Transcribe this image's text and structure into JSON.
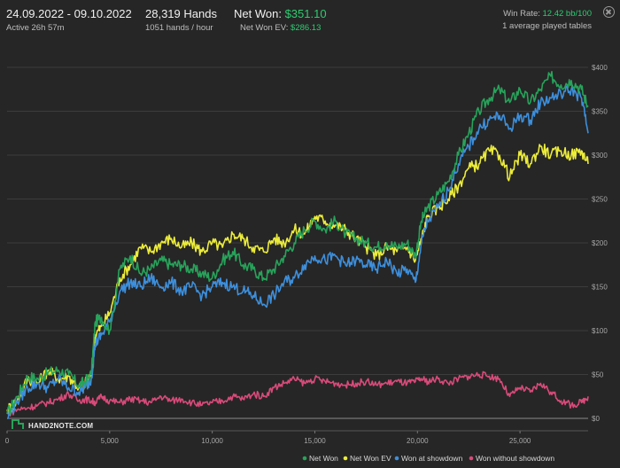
{
  "header": {
    "date_range": "24.09.2022 - 09.10.2022",
    "active_time": "Active 26h 57m",
    "hands": "28,319 Hands",
    "hands_per_hour": "1051 hands / hour",
    "net_won_label": "Net Won:",
    "net_won_value": "$351.10",
    "net_won_ev_label": "Net Won  EV:",
    "net_won_ev_value": "$286.13",
    "win_rate_label": "Win Rate:",
    "win_rate_value": "12.42 bb/100",
    "tables_info": "1 average played tables"
  },
  "logo": {
    "text": "HAND2NOTE.COM",
    "icon": "hand2note-logo-icon"
  },
  "toolbar": {
    "close_icon": "close-icon"
  },
  "colors": {
    "background": "#262626",
    "grid": "#3c3c3c",
    "net_won": "#27a35a",
    "net_won_ev": "#ecec3a",
    "won_at_showdown": "#3d8fdc",
    "won_without_showdown": "#d94a7a",
    "accent_green": "#2ecc71"
  },
  "chart_data": {
    "type": "line",
    "title": "",
    "xlabel": "",
    "ylabel": "",
    "xlim": [
      0,
      28319
    ],
    "ylim": [
      0,
      400
    ],
    "x_ticks": [
      0,
      5000,
      10000,
      15000,
      20000,
      25000
    ],
    "x_tick_labels": [
      "0",
      "5,000",
      "10,000",
      "15,000",
      "20,000",
      "25,000"
    ],
    "y_ticks": [
      0,
      50,
      100,
      150,
      200,
      250,
      300,
      350,
      400
    ],
    "y_tick_labels": [
      "$0",
      "$50",
      "$100",
      "$150",
      "$200",
      "$250",
      "$300",
      "$350",
      "$400"
    ],
    "grid": true,
    "legend_position": "bottom-right",
    "x": [
      0,
      500,
      1000,
      1500,
      2000,
      2500,
      3000,
      3500,
      3800,
      4100,
      4300,
      4600,
      5000,
      5500,
      6000,
      6500,
      7000,
      7500,
      8000,
      8500,
      9000,
      9500,
      10000,
      10500,
      11000,
      11500,
      12000,
      12500,
      13000,
      13500,
      14000,
      14500,
      15000,
      15500,
      16000,
      16500,
      17000,
      17500,
      18000,
      18500,
      19000,
      19500,
      19900,
      20200,
      20500,
      21000,
      21500,
      22000,
      22500,
      23000,
      23500,
      24000,
      24500,
      25000,
      25500,
      26000,
      26500,
      27000,
      27500,
      28000,
      28319
    ],
    "series": [
      {
        "name": "Net Won",
        "color_key": "net_won",
        "values": [
          5,
          25,
          48,
          45,
          52,
          55,
          50,
          38,
          42,
          50,
          110,
          115,
          100,
          170,
          185,
          165,
          170,
          180,
          175,
          175,
          170,
          165,
          160,
          180,
          190,
          175,
          170,
          160,
          170,
          185,
          200,
          215,
          225,
          215,
          225,
          210,
          205,
          200,
          195,
          200,
          195,
          200,
          185,
          225,
          240,
          255,
          270,
          300,
          325,
          350,
          365,
          375,
          360,
          375,
          360,
          375,
          390,
          380,
          385,
          375,
          355
        ]
      },
      {
        "name": "Net Won  EV",
        "color_key": "net_won_ev",
        "values": [
          10,
          20,
          45,
          40,
          55,
          45,
          48,
          35,
          40,
          48,
          95,
          105,
          120,
          160,
          175,
          195,
          190,
          200,
          205,
          195,
          200,
          190,
          200,
          195,
          210,
          205,
          195,
          190,
          205,
          200,
          215,
          210,
          230,
          225,
          220,
          215,
          205,
          195,
          185,
          195,
          190,
          195,
          180,
          205,
          230,
          240,
          250,
          265,
          285,
          290,
          305,
          300,
          275,
          300,
          290,
          310,
          300,
          305,
          300,
          305,
          290
        ]
      },
      {
        "name": "Won at showdown",
        "color_key": "won_at_showdown",
        "values": [
          0,
          20,
          35,
          40,
          35,
          45,
          35,
          30,
          35,
          45,
          85,
          95,
          110,
          145,
          155,
          150,
          160,
          150,
          155,
          145,
          150,
          140,
          150,
          155,
          150,
          145,
          140,
          130,
          140,
          155,
          160,
          175,
          185,
          180,
          185,
          175,
          180,
          175,
          170,
          180,
          165,
          170,
          155,
          200,
          225,
          240,
          260,
          290,
          310,
          330,
          340,
          345,
          330,
          345,
          340,
          360,
          365,
          370,
          375,
          365,
          325
        ]
      },
      {
        "name": "Won without showdown",
        "color_key": "won_without_showdown",
        "values": [
          5,
          10,
          12,
          15,
          18,
          22,
          28,
          20,
          22,
          20,
          18,
          25,
          20,
          18,
          22,
          20,
          18,
          25,
          20,
          22,
          18,
          15,
          18,
          20,
          25,
          22,
          28,
          25,
          35,
          40,
          45,
          40,
          45,
          42,
          40,
          38,
          40,
          42,
          38,
          40,
          42,
          40,
          42,
          45,
          42,
          45,
          40,
          45,
          48,
          50,
          48,
          45,
          25,
          35,
          30,
          40,
          30,
          20,
          15,
          18,
          25
        ]
      }
    ]
  }
}
